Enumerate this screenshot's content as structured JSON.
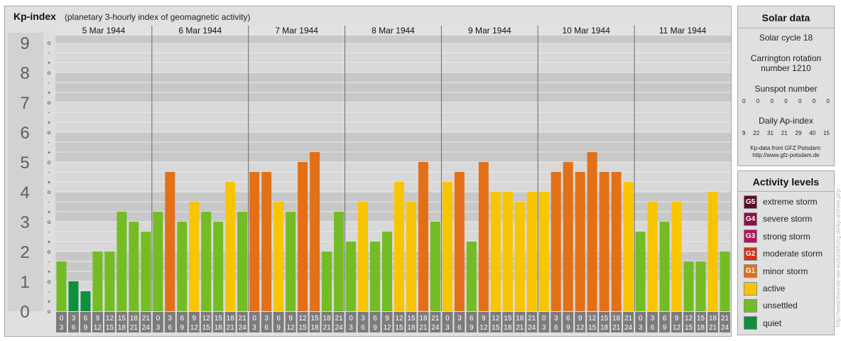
{
  "header": {
    "title": "Kp-index",
    "subtitle": "(planetary 3-hourly index of geomagnetic activity)"
  },
  "chart_data": {
    "type": "bar",
    "title": "Kp-index",
    "subtitle": "(planetary 3-hourly index of geomagnetic activity)",
    "ylim": [
      0,
      9
    ],
    "y_ticks": [
      "0",
      "1",
      "2",
      "3",
      "4",
      "5",
      "6",
      "7",
      "8",
      "9"
    ],
    "thirds_labels": [
      "o",
      "+",
      "-"
    ],
    "days": [
      "5 Mar 1944",
      "6 Mar 1944",
      "7 Mar 1944",
      "8 Mar 1944",
      "9 Mar 1944",
      "10 Mar 1944",
      "11 Mar 1944"
    ],
    "interval_start_labels": [
      "0",
      "3",
      "6",
      "9",
      "12",
      "15",
      "18",
      "21"
    ],
    "interval_end_labels": [
      "3",
      "6",
      "9",
      "12",
      "15",
      "18",
      "21",
      "24"
    ],
    "values": [
      1.667,
      1.0,
      0.667,
      2.0,
      2.0,
      3.333,
      3.0,
      2.667,
      3.333,
      4.667,
      3.0,
      3.667,
      3.333,
      3.0,
      4.333,
      3.333,
      4.667,
      4.667,
      3.667,
      3.333,
      5.0,
      5.333,
      2.0,
      3.333,
      2.333,
      3.667,
      2.333,
      2.667,
      4.333,
      3.667,
      5.0,
      3.0,
      4.333,
      4.667,
      2.333,
      5.0,
      4.0,
      4.0,
      3.667,
      4.0,
      4.0,
      4.667,
      5.0,
      4.667,
      5.333,
      4.667,
      4.667,
      4.333,
      2.667,
      3.667,
      3.0,
      3.667,
      1.667,
      1.667,
      4.0,
      2.0
    ],
    "colors": {
      "quiet": "#0f8f3e",
      "unsettled": "#74bc24",
      "active": "#f8c500",
      "storm": "#e37017"
    },
    "grid": true
  },
  "solar": {
    "title": "Solar data",
    "cycle": "Solar cycle 18",
    "carrington_line1": "Carrington rotation",
    "carrington_line2": "number 1210",
    "sunspot_title": "Sunspot number",
    "sunspot_values": [
      "0",
      "0",
      "0",
      "0",
      "0",
      "0",
      "0"
    ],
    "ap_title": "Daily Ap-index",
    "ap_values": [
      "9",
      "22",
      "31",
      "21",
      "29",
      "40",
      "15"
    ],
    "source_line1": "Kp-data from GFZ Potsdam:",
    "source_line2": "http://www.gfz-potsdam.de"
  },
  "levels": {
    "title": "Activity levels",
    "items": [
      {
        "badge": "G5",
        "label": "extreme storm",
        "color": "#5b0d28"
      },
      {
        "badge": "G4",
        "label": "severe storm",
        "color": "#8a1046"
      },
      {
        "badge": "G3",
        "label": "strong storm",
        "color": "#b5135a"
      },
      {
        "badge": "G2",
        "label": "moderate storm",
        "color": "#d2331d"
      },
      {
        "badge": "G1",
        "label": "minor storm",
        "color": "#e37017"
      },
      {
        "badge": "",
        "label": "active",
        "color": "#f8c500"
      },
      {
        "badge": "",
        "label": "unsettled",
        "color": "#74bc24"
      },
      {
        "badge": "",
        "label": "quiet",
        "color": "#0f8f3e"
      }
    ]
  },
  "watermark": "http://www.freunde-der-kulturstiftung.de/kp-archive.php"
}
